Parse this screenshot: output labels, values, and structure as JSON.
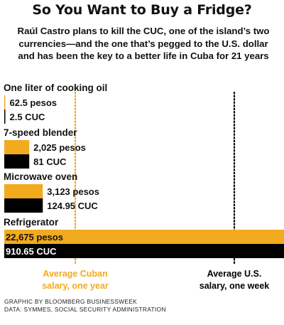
{
  "title": "So You Want to Buy a Fridge?",
  "subtitle": "Raúl Castro plans to kill the CUC, one of the island’s two currencies—and the one that’s pegged to the U.S. dollar and has been the key to a better life in Cuba for 21 years",
  "credit": {
    "line1": "GRAPHIC BY BLOOMBERG BUSINESSWEEK",
    "line2": "DATA: SYMMES, SOCIAL SECURITY ADMINISTRATION"
  },
  "colors": {
    "pesos": "#F2AA1F",
    "cuc": "#000000",
    "text": "#111111"
  },
  "chart_data": {
    "type": "bar",
    "categories": [
      "One liter of cooking oil",
      "7-speed blender",
      "Microwave oven",
      "Refrigerator"
    ],
    "series": [
      {
        "currency": "pesos",
        "values": [
          62.5,
          2025,
          3123,
          22675
        ],
        "labels": [
          "62.5 pesos",
          "2,025 pesos",
          "3,123 pesos",
          "22,675 pesos"
        ]
      },
      {
        "currency": "cuc",
        "values": [
          2.5,
          81,
          124.95,
          910.65
        ],
        "labels": [
          "2.5 CUC",
          "81 CUC",
          "124.95 CUC",
          "910.65 CUC"
        ]
      }
    ],
    "reference_lines": [
      {
        "label_line1": "Average Cuban",
        "label_line2": "salary, one year",
        "color": "pesos",
        "style": "dotted"
      },
      {
        "label_line1": "Average U.S.",
        "label_line2": "salary, one week",
        "color": "cuc",
        "style": "dotted"
      }
    ],
    "grid": false,
    "legend": "none"
  }
}
